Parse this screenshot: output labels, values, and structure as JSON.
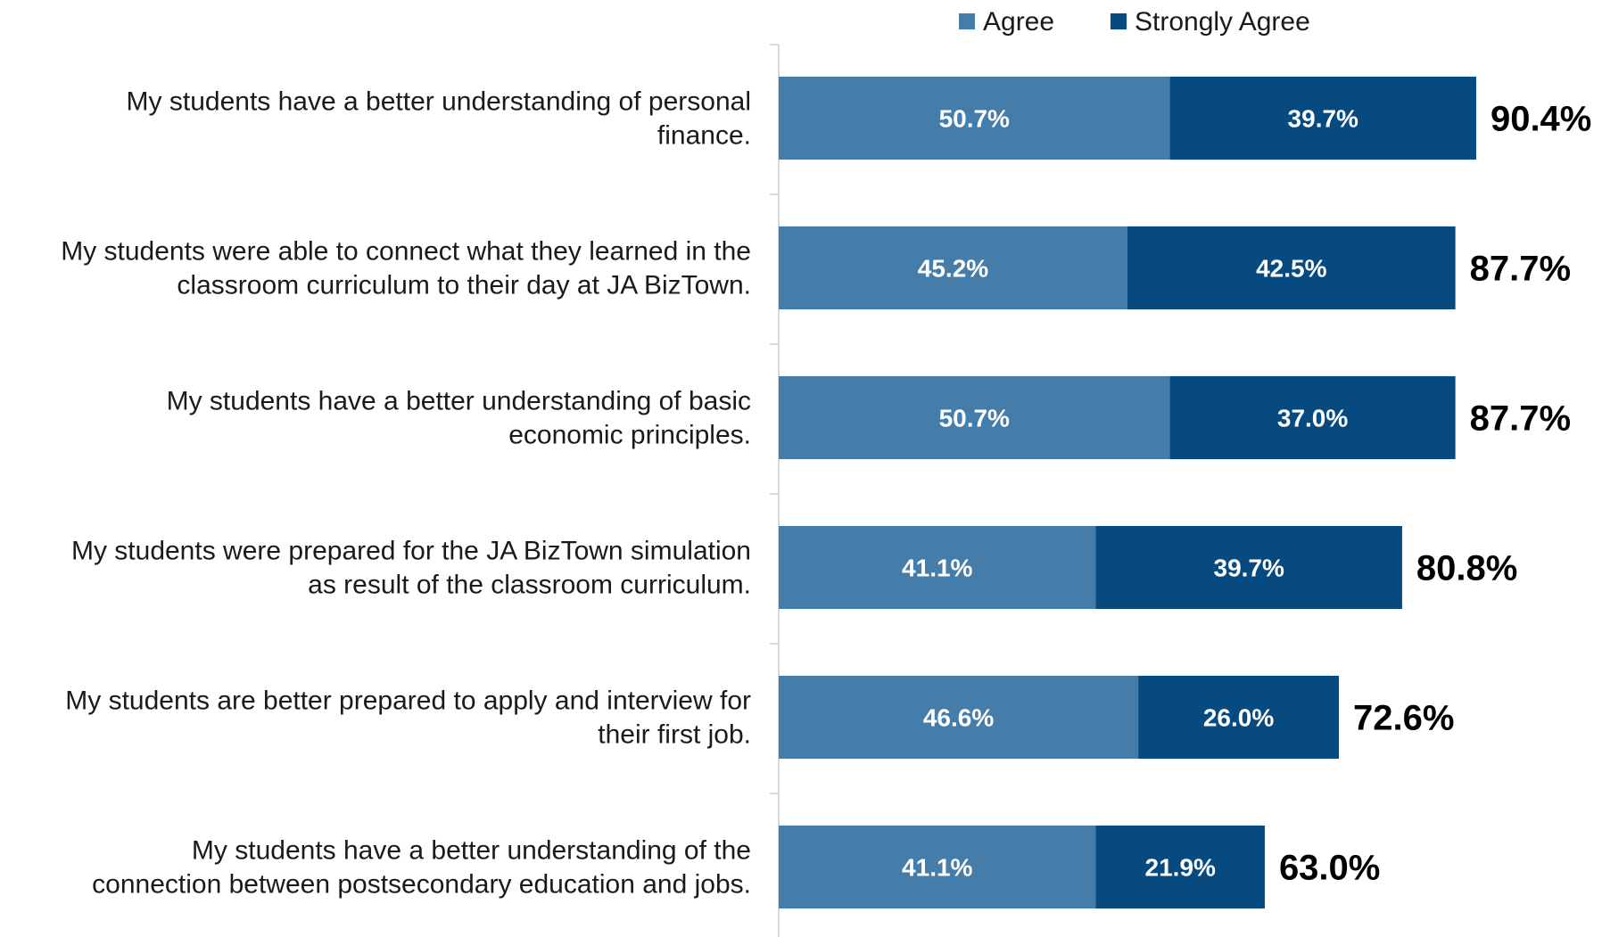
{
  "chart_data": {
    "type": "bar",
    "orientation": "horizontal",
    "stacked": true,
    "categories": [
      [
        "My students have a better understanding of personal",
        "finance."
      ],
      [
        "My students were able to connect what they learned in the",
        "classroom curriculum to their day at JA BizTown."
      ],
      [
        "My students have a better understanding of basic",
        "economic principles."
      ],
      [
        "My students were prepared for the JA BizTown simulation",
        "as  result of the classroom curriculum."
      ],
      [
        "My students are better prepared to apply and interview for",
        "their first job."
      ],
      [
        "My students have a better understanding of the",
        "connection between postsecondary education and jobs."
      ]
    ],
    "series": [
      {
        "name": "Agree",
        "color": "#447daa",
        "values": [
          50.7,
          45.2,
          50.7,
          41.1,
          46.6,
          41.1
        ]
      },
      {
        "name": "Strongly Agree",
        "color": "#074a80",
        "values": [
          39.7,
          42.5,
          37.0,
          39.7,
          26.0,
          21.9
        ]
      }
    ],
    "totals": [
      90.4,
      87.7,
      87.7,
      80.8,
      72.6,
      63.0
    ],
    "legend_position": "top",
    "grid": false,
    "xlim": [
      0,
      100
    ]
  }
}
